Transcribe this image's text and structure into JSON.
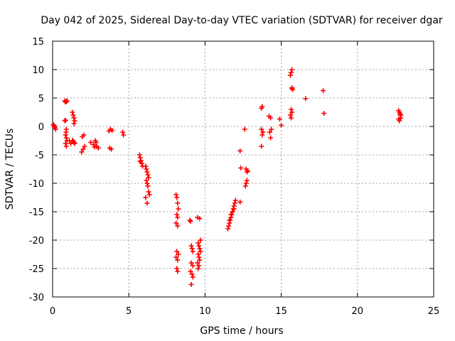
{
  "chart_data": {
    "type": "scatter",
    "title": "Day 042 of 2025, Sidereal Day-to-day VTEC variation (SDTVAR) for receiver dgar",
    "xlabel": "GPS time / hours",
    "ylabel": "SDTVAR / TECUs",
    "xlim": [
      0,
      25
    ],
    "ylim": [
      -30,
      15
    ],
    "xticks": [
      0,
      5,
      10,
      15,
      20,
      25
    ],
    "yticks": [
      -30,
      -25,
      -20,
      -15,
      -10,
      -5,
      0,
      5,
      10,
      15
    ],
    "grid": true,
    "marker": "plus",
    "color": "#ff0000",
    "series": [
      {
        "name": "SDTVAR",
        "x": [
          0.05,
          0.1,
          0.15,
          0.2,
          0.1,
          0.8,
          0.85,
          0.9,
          0.95,
          0.8,
          0.85,
          0.9,
          0.85,
          0.9,
          0.95,
          0.85,
          0.9,
          0.88,
          1.3,
          1.35,
          1.4,
          1.45,
          1.4,
          1.35,
          1.45,
          1.1,
          1.2,
          1.3,
          1.4,
          1.9,
          2.0,
          2.1,
          1.95,
          2.05,
          2.5,
          2.7,
          2.8,
          2.9,
          3.0,
          2.75,
          2.85,
          3.7,
          3.8,
          3.9,
          3.75,
          3.85,
          4.6,
          4.65,
          5.7,
          5.75,
          5.8,
          5.85,
          5.9,
          5.75,
          6.1,
          6.15,
          6.2,
          6.25,
          6.3,
          6.15,
          6.2,
          6.25,
          6.3,
          6.35,
          6.1,
          6.2,
          8.1,
          8.15,
          8.2,
          8.25,
          8.15,
          8.2,
          8.1,
          8.2,
          8.15,
          8.25,
          8.1,
          8.2,
          8.15,
          8.2,
          9.0,
          9.05,
          9.1,
          9.15,
          9.2,
          9.1,
          9.2,
          9.05,
          9.15,
          9.2,
          9.1,
          9.5,
          9.55,
          9.6,
          9.65,
          9.7,
          9.55,
          9.6,
          9.65,
          9.5,
          9.6,
          9.7,
          9.55,
          9.65,
          11.5,
          11.55,
          11.6,
          11.65,
          11.7,
          11.75,
          11.8,
          11.85,
          11.9,
          11.95,
          12.0,
          11.6,
          11.7,
          11.8,
          11.9,
          12.3,
          12.35,
          12.3,
          12.6,
          12.7,
          12.75,
          12.8,
          12.65,
          12.7,
          12.75,
          13.7,
          13.75,
          13.8,
          13.7,
          13.75,
          13.7,
          14.2,
          14.3,
          14.35,
          14.25,
          14.3,
          14.9,
          15.0,
          15.6,
          15.65,
          15.7,
          15.75,
          15.7,
          15.65,
          15.7,
          15.6,
          15.65,
          15.7,
          16.6,
          17.75,
          17.8,
          22.7,
          22.75,
          22.8,
          22.85,
          22.75,
          22.8,
          22.7,
          22.85
        ],
        "y": [
          0.3,
          0.0,
          -0.2,
          -0.5,
          0.1,
          4.5,
          4.3,
          4.4,
          4.5,
          1.0,
          1.1,
          -0.5,
          -1.5,
          -2.0,
          -2.5,
          -3.0,
          -3.5,
          -1.0,
          2.5,
          2.0,
          1.5,
          1.0,
          0.5,
          -2.5,
          -3.0,
          -2.5,
          -3.0,
          -2.5,
          -2.8,
          -4.5,
          -4.0,
          -3.5,
          -1.8,
          -1.5,
          -2.8,
          -3.2,
          -2.5,
          -3.5,
          -3.8,
          -3.6,
          -2.8,
          -0.8,
          -0.5,
          -0.7,
          -3.8,
          -4.0,
          -1.0,
          -1.5,
          -5.0,
          -5.5,
          -6.0,
          -6.5,
          -7.0,
          -6.2,
          -7.0,
          -7.5,
          -8.0,
          -8.5,
          -9.0,
          -9.5,
          -10.0,
          -10.5,
          -11.5,
          -12.0,
          -12.5,
          -13.5,
          -12.0,
          -12.5,
          -13.5,
          -14.5,
          -15.5,
          -16.0,
          -17.0,
          -17.5,
          -22.0,
          -22.5,
          -23.0,
          -23.5,
          -25.0,
          -25.5,
          -16.5,
          -16.7,
          -21.0,
          -21.5,
          -22.0,
          -24.0,
          -24.5,
          -25.5,
          -26.0,
          -26.5,
          -27.8,
          -16.0,
          -20.5,
          -21.0,
          -21.5,
          -22.0,
          -22.5,
          -23.0,
          -23.5,
          -24.0,
          -24.5,
          -20.0,
          -25.0,
          -16.2,
          -18.0,
          -17.5,
          -17.0,
          -16.5,
          -16.0,
          -15.5,
          -15.0,
          -14.5,
          -14.0,
          -13.5,
          -13.0,
          -16.5,
          -15.5,
          -15.0,
          -14.5,
          -4.3,
          -7.3,
          -13.3,
          -0.5,
          -7.5,
          -8.0,
          -7.8,
          -10.5,
          -10.0,
          -9.5,
          3.2,
          3.5,
          -1.0,
          -0.5,
          -1.5,
          -3.5,
          1.8,
          1.5,
          -0.5,
          -1.0,
          -2.0,
          1.3,
          0.2,
          9.0,
          9.5,
          10.0,
          6.5,
          6.8,
          3.0,
          2.5,
          2.0,
          1.5,
          6.7,
          4.9,
          6.3,
          2.3,
          2.8,
          2.5,
          2.0,
          1.5,
          1.0,
          2.2,
          1.3,
          2.0
        ]
      }
    ]
  }
}
